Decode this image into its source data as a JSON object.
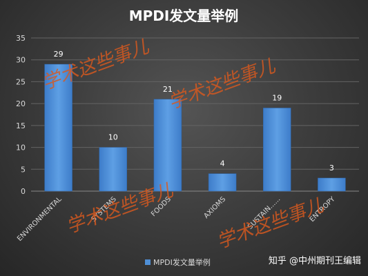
{
  "chart_data": {
    "type": "bar",
    "title": "MPDI发文量举例",
    "categories": [
      "ENVIRONMENTAL",
      "SYSTEMS",
      "FOODS",
      "AXIOMS",
      "SUSTAIN......",
      "ENTROPY"
    ],
    "series": [
      {
        "name": "MPDI发文量举例",
        "values": [
          29,
          10,
          21,
          4,
          19,
          3
        ]
      }
    ],
    "ylim": [
      0,
      35
    ],
    "yticks": [
      0,
      5,
      10,
      15,
      20,
      25,
      30,
      35
    ],
    "grid": true,
    "legend_position": "bottom",
    "bar_color": "#4f8fd6"
  },
  "watermark": "学术这些事儿",
  "credit": "知乎 @中州期刊王编辑"
}
